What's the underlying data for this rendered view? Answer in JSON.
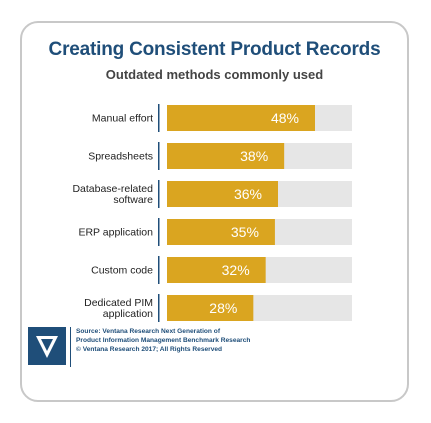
{
  "chart_data": {
    "type": "bar",
    "orientation": "horizontal",
    "title": "Creating Consistent Product Records",
    "subtitle": "Outdated methods commonly used",
    "categories": [
      [
        "Manual effort"
      ],
      [
        "Spreadsheets"
      ],
      [
        "Database-related",
        "software"
      ],
      [
        "ERP application"
      ],
      [
        "Custom code"
      ],
      [
        "Dedicated PIM",
        "application"
      ]
    ],
    "values": [
      48,
      38,
      36,
      35,
      32,
      28
    ],
    "value_labels": [
      "48%",
      "38%",
      "36%",
      "35%",
      "32%",
      "28%"
    ],
    "xlim": [
      0,
      60
    ],
    "colors": {
      "bar": "#daa520",
      "track": "#e6e6e6",
      "divider": "#1f4e79"
    }
  },
  "footer": {
    "source_lines": [
      "Source: Ventana Research Next Generation of",
      "Product Information Management Benchmark Research",
      "© Ventana Research 2017; All Rights Reserved"
    ],
    "logo_icon": "ventana-logo-icon"
  }
}
